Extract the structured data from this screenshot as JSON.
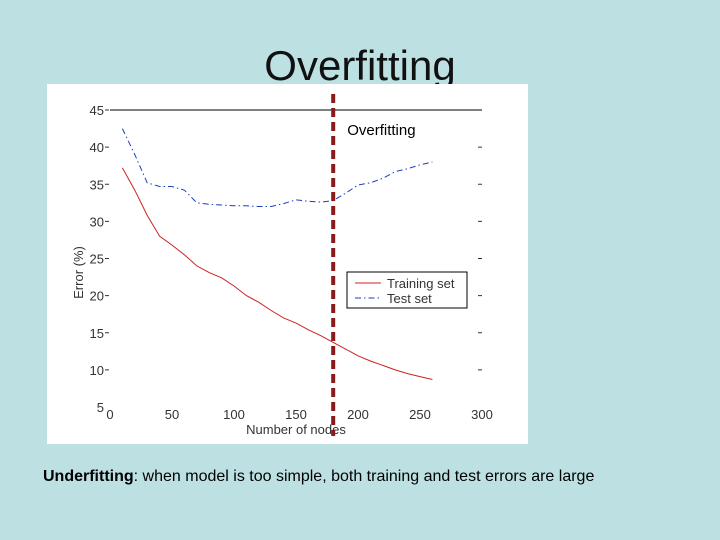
{
  "slide": {
    "title": "Overfitting",
    "caption_term": "Underfitting",
    "caption_rest": ": when model is too simple, both training and test errors are large"
  },
  "colors": {
    "background": "#bde0e3",
    "training": "#cc2222",
    "test": "#1a3fbf",
    "threshold": "#8b1a1a"
  },
  "chart_data": {
    "type": "line",
    "title": "",
    "xlabel": "Number of nodes",
    "ylabel": "Error (%)",
    "xlim": [
      0,
      300
    ],
    "ylim": [
      5,
      45
    ],
    "xticks": [
      0,
      50,
      100,
      150,
      200,
      250,
      300
    ],
    "yticks": [
      5,
      10,
      15,
      20,
      25,
      30,
      35,
      40,
      45
    ],
    "grid": false,
    "legend_position": "center-right",
    "annotation": {
      "label": "Overfitting",
      "x": 180
    },
    "series": [
      {
        "name": "Training set",
        "style": "solid",
        "x": [
          10,
          20,
          30,
          40,
          50,
          60,
          70,
          80,
          90,
          100,
          110,
          120,
          130,
          140,
          150,
          160,
          170,
          180,
          190,
          200,
          210,
          220,
          230,
          240,
          250,
          260
        ],
        "y": [
          37.2,
          34.2,
          30.8,
          28.0,
          26.8,
          25.5,
          24.0,
          23.1,
          22.4,
          21.3,
          20.0,
          19.1,
          18.0,
          17.0,
          16.3,
          15.4,
          14.6,
          13.7,
          12.8,
          11.9,
          11.2,
          10.6,
          10.0,
          9.5,
          9.1,
          8.7
        ]
      },
      {
        "name": "Test set",
        "style": "dashdot",
        "x": [
          10,
          20,
          30,
          40,
          50,
          60,
          70,
          80,
          90,
          100,
          110,
          120,
          130,
          140,
          150,
          160,
          170,
          180,
          190,
          200,
          210,
          220,
          230,
          240,
          250,
          260
        ],
        "y": [
          42.5,
          39.0,
          35.2,
          34.7,
          34.7,
          34.2,
          32.5,
          32.3,
          32.2,
          32.1,
          32.1,
          32.0,
          32.0,
          32.4,
          32.9,
          32.7,
          32.6,
          32.8,
          33.8,
          34.9,
          35.2,
          35.8,
          36.7,
          37.1,
          37.6,
          38.0
        ]
      }
    ]
  }
}
